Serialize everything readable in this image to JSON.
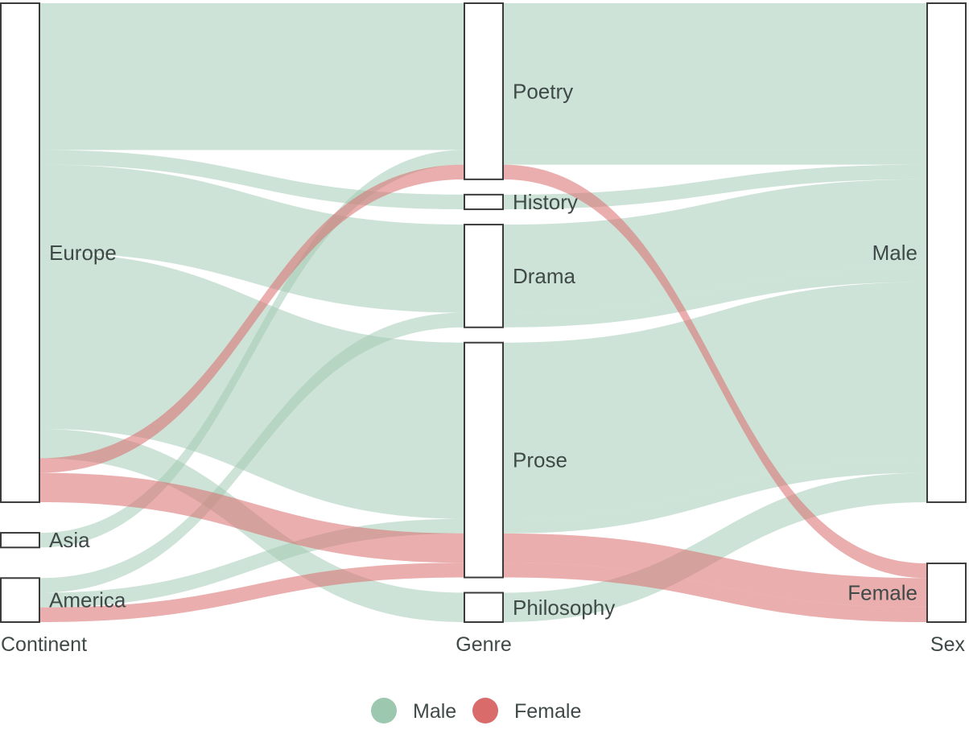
{
  "chart_data": {
    "type": "alluvial",
    "dimensions": [
      "Continent",
      "Genre",
      "Sex"
    ],
    "colors": {
      "Male": "#9dc8b0",
      "Female": "#d96b6b"
    },
    "legend": [
      {
        "name": "Male",
        "color": "#9dc8b0"
      },
      {
        "name": "Female",
        "color": "#d96b6b"
      }
    ],
    "legend_position": "bottom",
    "nodes": {
      "Continent": [
        "Europe",
        "Asia",
        "America"
      ],
      "Genre": [
        "Poetry",
        "History",
        "Drama",
        "Prose",
        "Philosophy"
      ],
      "Sex": [
        "Male",
        "Female"
      ]
    },
    "flows": [
      {
        "Continent": "Europe",
        "Genre": "Poetry",
        "Sex": "Male",
        "value": 10
      },
      {
        "Continent": "Europe",
        "Genre": "History",
        "Sex": "Male",
        "value": 1
      },
      {
        "Continent": "Europe",
        "Genre": "Drama",
        "Sex": "Male",
        "value": 6
      },
      {
        "Continent": "Europe",
        "Genre": "Prose",
        "Sex": "Male",
        "value": 12
      },
      {
        "Continent": "Europe",
        "Genre": "Philosophy",
        "Sex": "Male",
        "value": 2
      },
      {
        "Continent": "Europe",
        "Genre": "Prose",
        "Sex": "Female",
        "value": 2
      },
      {
        "Continent": "Europe",
        "Genre": "Poetry",
        "Sex": "Female",
        "value": 1
      },
      {
        "Continent": "Asia",
        "Genre": "Poetry",
        "Sex": "Male",
        "value": 1
      },
      {
        "Continent": "America",
        "Genre": "Drama",
        "Sex": "Male",
        "value": 1
      },
      {
        "Continent": "America",
        "Genre": "Prose",
        "Sex": "Male",
        "value": 1
      },
      {
        "Continent": "America",
        "Genre": "Prose",
        "Sex": "Female",
        "value": 1
      }
    ]
  }
}
